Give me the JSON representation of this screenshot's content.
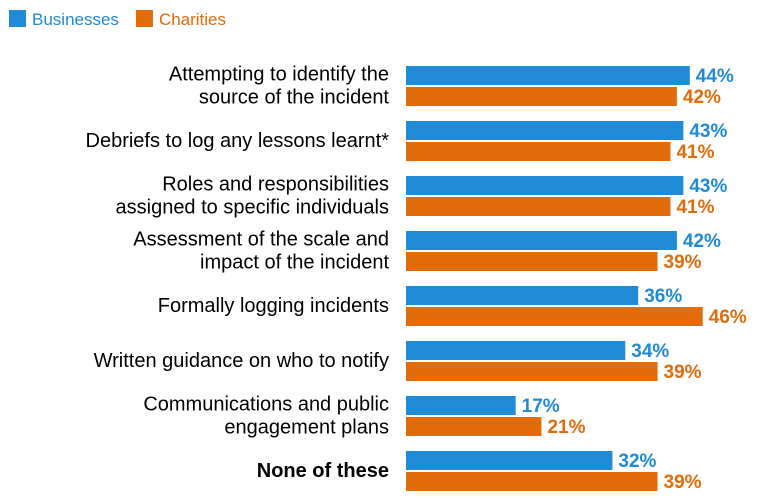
{
  "chart_data": {
    "type": "bar",
    "orientation": "horizontal",
    "legend_position": "top-left",
    "colors": {
      "Businesses": "#1f8ad6",
      "Charities": "#e26b0a"
    },
    "categories": [
      [
        "Attempting to identify the",
        "source of the incident"
      ],
      [
        "Debriefs to log any lessons learnt*"
      ],
      [
        "Roles and responsibilities",
        "assigned to specific individuals"
      ],
      [
        "Assessment of the scale and",
        "impact of the incident"
      ],
      [
        "Formally logging incidents"
      ],
      [
        "Written guidance on who to notify"
      ],
      [
        "Communications and public",
        "engagement plans"
      ],
      [
        "None of these"
      ]
    ],
    "bold_categories": [
      7
    ],
    "series": [
      {
        "name": "Businesses",
        "values": [
          44,
          43,
          43,
          42,
          36,
          34,
          17,
          32
        ],
        "labels": [
          "44%",
          "43%",
          "43%",
          "42%",
          "36%",
          "34%",
          "17%",
          "32%"
        ]
      },
      {
        "name": "Charities",
        "values": [
          42,
          41,
          41,
          39,
          46,
          39,
          21,
          39
        ],
        "labels": [
          "42%",
          "41%",
          "41%",
          "39%",
          "46%",
          "39%",
          "21%",
          "39%"
        ]
      }
    ],
    "xlim": [
      0,
      100
    ],
    "grid": false
  }
}
